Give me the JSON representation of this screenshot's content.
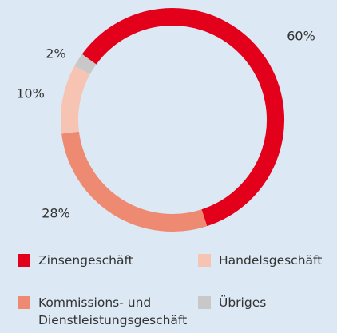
{
  "chart_data": {
    "type": "donut",
    "categories": [
      "Zinsengeschäft",
      "Kommissions- und Dienstleistungsgeschäft",
      "Handelsgeschäft",
      "Übriges"
    ],
    "values": [
      60,
      28,
      10,
      2
    ],
    "value_labels": [
      "60%",
      "28%",
      "10%",
      "2%"
    ],
    "colors": [
      "#e2001a",
      "#ef8a72",
      "#f7c4b4",
      "#c8c8c8"
    ]
  }
}
